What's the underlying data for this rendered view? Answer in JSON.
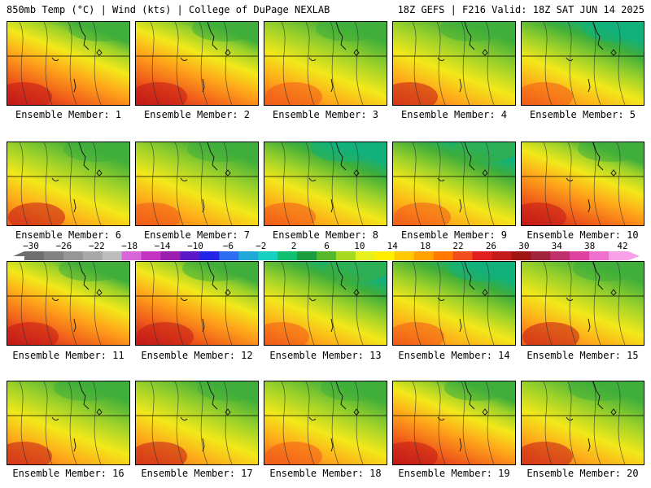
{
  "header": {
    "left": "850mb Temp (°C) | Wind (kts) | College of DuPage NEXLAB",
    "right": "18Z GEFS | F216 Valid: 18Z SAT JUN 14 2025"
  },
  "caption_prefix": "Ensemble Member:",
  "members": [
    {
      "n": "1",
      "warmth": 0.95
    },
    {
      "n": "2",
      "warmth": 0.95
    },
    {
      "n": "3",
      "warmth": 0.7
    },
    {
      "n": "4",
      "warmth": 0.75
    },
    {
      "n": "5",
      "warmth": 0.45
    },
    {
      "n": "6",
      "warmth": 0.75
    },
    {
      "n": "7",
      "warmth": 0.65
    },
    {
      "n": "8",
      "warmth": 0.45
    },
    {
      "n": "9",
      "warmth": 0.6
    },
    {
      "n": "10",
      "warmth": 0.85
    },
    {
      "n": "11",
      "warmth": 0.85
    },
    {
      "n": "12",
      "warmth": 0.85
    },
    {
      "n": "13",
      "warmth": 0.6
    },
    {
      "n": "14",
      "warmth": 0.5
    },
    {
      "n": "15",
      "warmth": 0.75
    },
    {
      "n": "16",
      "warmth": 0.8
    },
    {
      "n": "17",
      "warmth": 0.8
    },
    {
      "n": "18",
      "warmth": 0.7
    },
    {
      "n": "19",
      "warmth": 0.85
    },
    {
      "n": "20",
      "warmth": 0.75
    }
  ],
  "colorbar": {
    "labels": [
      "−30",
      "−26",
      "−22",
      "−18",
      "−14",
      "−10",
      "−6",
      "−2",
      "2",
      "6",
      "10",
      "14",
      "18",
      "22",
      "26",
      "30",
      "34",
      "38",
      "42"
    ],
    "colors": [
      "#6e6e6e",
      "#828282",
      "#969696",
      "#a8a8a8",
      "#bdbdbd",
      "#d966d9",
      "#c233c2",
      "#9a1fb0",
      "#5b18c8",
      "#2424e6",
      "#2b6ff0",
      "#1ea9d9",
      "#16d0c0",
      "#10c070",
      "#1a9e3c",
      "#54b82a",
      "#a6d91f",
      "#e6f01a",
      "#ffee00",
      "#ffc800",
      "#ffa200",
      "#ff7a00",
      "#f24d1a",
      "#e02020",
      "#c41a1a",
      "#a01414",
      "#a0243c",
      "#c0306a",
      "#e040a0",
      "#f070d0",
      "#f8a0e8"
    ]
  },
  "palette": {
    "cold": "#12b07a",
    "cool": "#3fae3a",
    "mild": "#9bd12a",
    "warm": "#f2e81a",
    "hot": "#ffa61a",
    "veryhot": "#f05a1a",
    "extreme": "#c21818"
  }
}
